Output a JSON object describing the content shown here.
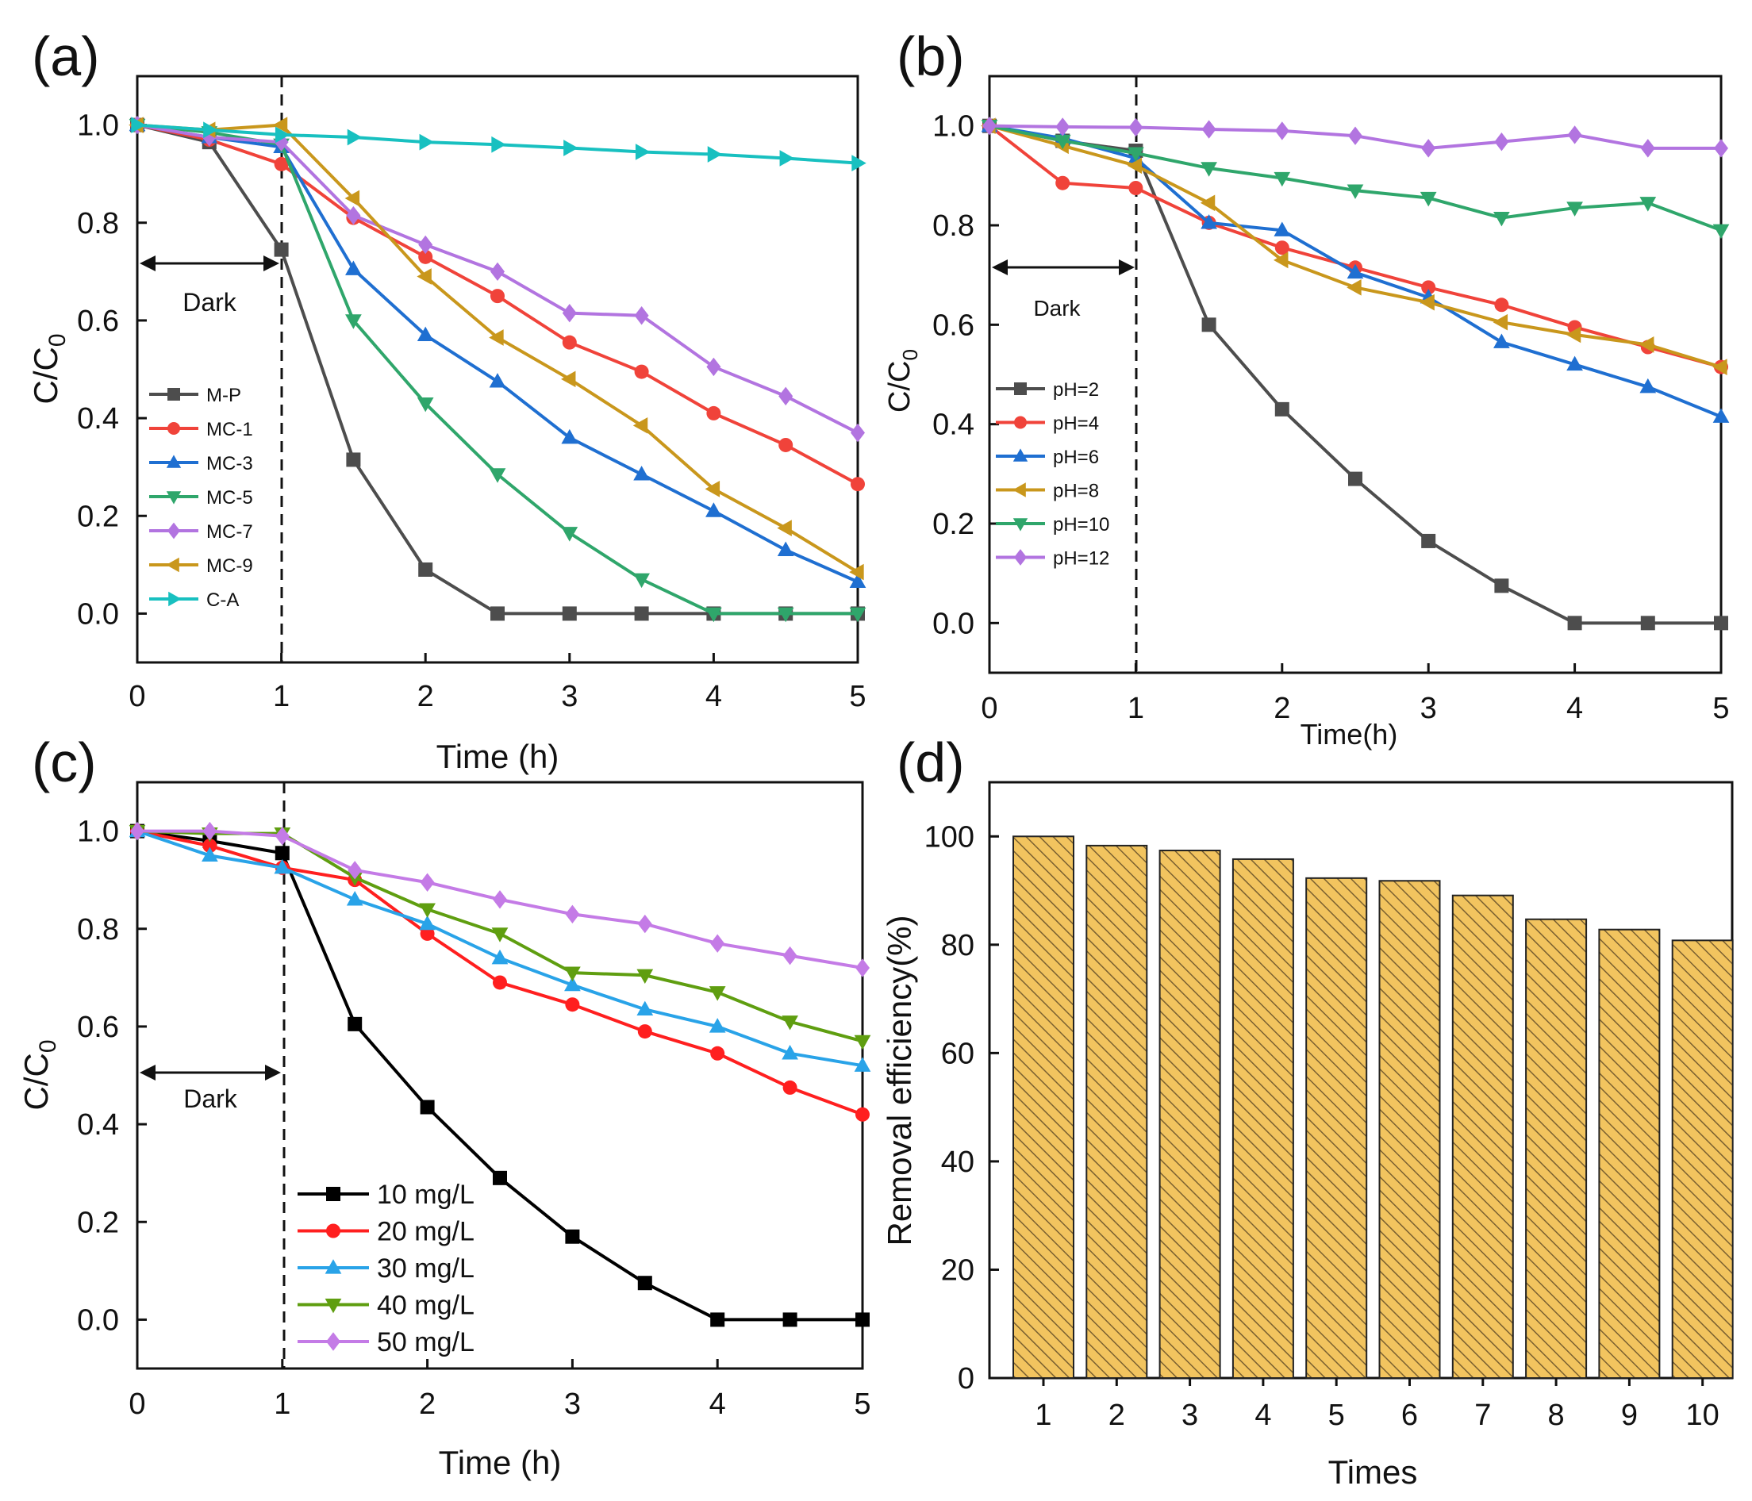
{
  "chart_data": [
    {
      "id": "a",
      "type": "line",
      "panel_label": "(a)",
      "xlabel": "Time (h)",
      "ylabel": "C/C",
      "ylabel_sub": "0",
      "xlim": [
        0,
        5
      ],
      "ylim": [
        -0.1,
        1.1
      ],
      "xticks": [
        "0",
        "1",
        "2",
        "3",
        "4",
        "5"
      ],
      "yticks": [
        "0.0",
        "0.2",
        "0.4",
        "0.6",
        "0.8",
        "1.0"
      ],
      "dark_label": "Dark",
      "dark_line_x": 1,
      "legend_position": "left",
      "x": [
        0,
        0.5,
        1,
        1.5,
        2,
        2.5,
        3,
        3.5,
        4,
        4.5,
        5
      ],
      "series": [
        {
          "name": "M-P",
          "color": "#4d4d4d",
          "marker": "square",
          "values": [
            1.0,
            0.965,
            0.745,
            0.315,
            0.09,
            0.0,
            0.0,
            0.0,
            0.0,
            0.0,
            0.0
          ]
        },
        {
          "name": "MC-1",
          "color": "#f0433a",
          "marker": "circle",
          "values": [
            1.0,
            0.97,
            0.92,
            0.81,
            0.73,
            0.65,
            0.555,
            0.495,
            0.41,
            0.345,
            0.265
          ]
        },
        {
          "name": "MC-3",
          "color": "#1f6fd1",
          "marker": "triangle-up",
          "values": [
            1.0,
            0.975,
            0.955,
            0.705,
            0.57,
            0.475,
            0.36,
            0.285,
            0.21,
            0.13,
            0.065
          ]
        },
        {
          "name": "MC-5",
          "color": "#2fa66b",
          "marker": "triangle-down",
          "values": [
            1.0,
            0.985,
            0.96,
            0.6,
            0.43,
            0.285,
            0.165,
            0.07,
            0.0,
            0.0,
            0.0
          ]
        },
        {
          "name": "MC-7",
          "color": "#b274e0",
          "marker": "diamond",
          "values": [
            1.0,
            0.975,
            0.965,
            0.815,
            0.755,
            0.7,
            0.615,
            0.61,
            0.505,
            0.445,
            0.37
          ]
        },
        {
          "name": "MC-9",
          "color": "#c9971c",
          "marker": "triangle-left",
          "values": [
            1.0,
            0.99,
            1.0,
            0.85,
            0.69,
            0.565,
            0.48,
            0.385,
            0.255,
            0.175,
            0.085
          ]
        },
        {
          "name": "C-A",
          "color": "#18c0c0",
          "marker": "triangle-right",
          "values": [
            1.0,
            0.99,
            0.98,
            0.975,
            0.965,
            0.96,
            0.953,
            0.945,
            0.94,
            0.932,
            0.922
          ]
        }
      ]
    },
    {
      "id": "b",
      "type": "line",
      "panel_label": "(b)",
      "xlabel": "Time(h)",
      "ylabel": "C/C",
      "ylabel_sub": "0",
      "xlim": [
        0,
        5
      ],
      "ylim": [
        -0.1,
        1.1
      ],
      "xticks": [
        "0",
        "1",
        "2",
        "3",
        "4",
        "5"
      ],
      "yticks": [
        "0.0",
        "0.2",
        "0.4",
        "0.6",
        "0.8",
        "1.0"
      ],
      "dark_label": "Dark",
      "dark_line_x": 1,
      "legend_position": "left",
      "x": [
        0,
        0.5,
        1,
        1.5,
        2,
        2.5,
        3,
        3.5,
        4,
        4.5,
        5
      ],
      "series": [
        {
          "name": "pH=2",
          "color": "#4d4d4d",
          "marker": "square",
          "values": [
            1.0,
            0.97,
            0.95,
            0.6,
            0.43,
            0.29,
            0.165,
            0.075,
            0.0,
            0.0,
            0.0
          ]
        },
        {
          "name": "pH=4",
          "color": "#f0433a",
          "marker": "circle",
          "values": [
            1.0,
            0.885,
            0.875,
            0.805,
            0.755,
            0.715,
            0.675,
            0.64,
            0.595,
            0.555,
            0.515
          ]
        },
        {
          "name": "pH=6",
          "color": "#1f6fd1",
          "marker": "triangle-up",
          "values": [
            1.0,
            0.975,
            0.935,
            0.805,
            0.79,
            0.705,
            0.655,
            0.565,
            0.52,
            0.475,
            0.415
          ]
        },
        {
          "name": "pH=8",
          "color": "#c9971c",
          "marker": "triangle-left",
          "values": [
            1.0,
            0.96,
            0.92,
            0.845,
            0.73,
            0.675,
            0.645,
            0.605,
            0.58,
            0.56,
            0.515
          ]
        },
        {
          "name": "pH=10",
          "color": "#2fa66b",
          "marker": "triangle-down",
          "values": [
            1.0,
            0.97,
            0.945,
            0.915,
            0.895,
            0.87,
            0.855,
            0.815,
            0.835,
            0.845,
            0.79
          ]
        },
        {
          "name": "pH=12",
          "color": "#b274e0",
          "marker": "diamond",
          "values": [
            1.0,
            0.998,
            0.997,
            0.993,
            0.99,
            0.98,
            0.955,
            0.968,
            0.982,
            0.955,
            0.955
          ]
        }
      ]
    },
    {
      "id": "c",
      "type": "line",
      "panel_label": "(c)",
      "xlabel": "Time (h)",
      "ylabel": "C/C",
      "ylabel_sub": "0",
      "xlim": [
        0,
        5
      ],
      "ylim": [
        -0.1,
        1.1
      ],
      "xticks": [
        "0",
        "1",
        "2",
        "3",
        "4",
        "5"
      ],
      "yticks": [
        "0.0",
        "0.2",
        "0.4",
        "0.6",
        "0.8",
        "1.0"
      ],
      "dark_label": "Dark",
      "dark_line_x": 1,
      "legend_position": "bottom-center",
      "x": [
        0,
        0.5,
        1,
        1.5,
        2,
        2.5,
        3,
        3.5,
        4,
        4.5,
        5
      ],
      "series": [
        {
          "name": "10 mg/L",
          "color": "#000000",
          "marker": "square",
          "values": [
            1.0,
            0.98,
            0.955,
            0.605,
            0.435,
            0.29,
            0.17,
            0.075,
            0.0,
            0.0,
            0.0
          ]
        },
        {
          "name": "20 mg/L",
          "color": "#ff1f1f",
          "marker": "circle",
          "values": [
            1.0,
            0.97,
            0.925,
            0.9,
            0.79,
            0.69,
            0.645,
            0.59,
            0.545,
            0.475,
            0.42
          ]
        },
        {
          "name": "30 mg/L",
          "color": "#29a3e8",
          "marker": "triangle-up",
          "values": [
            1.0,
            0.95,
            0.925,
            0.86,
            0.81,
            0.74,
            0.685,
            0.635,
            0.6,
            0.545,
            0.52
          ]
        },
        {
          "name": "40 mg/L",
          "color": "#5f9e10",
          "marker": "triangle-down",
          "values": [
            1.0,
            0.995,
            0.995,
            0.905,
            0.84,
            0.79,
            0.71,
            0.705,
            0.67,
            0.61,
            0.57
          ]
        },
        {
          "name": "50 mg/L",
          "color": "#c47be6",
          "marker": "diamond",
          "values": [
            1.0,
            1.0,
            0.99,
            0.92,
            0.895,
            0.86,
            0.83,
            0.81,
            0.77,
            0.745,
            0.72
          ]
        }
      ]
    },
    {
      "id": "d",
      "type": "bar",
      "panel_label": "(d)",
      "xlabel": "Times",
      "ylabel": "Removal efficiency(%)",
      "ylim": [
        0,
        110
      ],
      "yticks": [
        "0",
        "20",
        "40",
        "60",
        "80",
        "100"
      ],
      "categories": [
        "1",
        "2",
        "3",
        "4",
        "5",
        "6",
        "7",
        "8",
        "9",
        "10"
      ],
      "values": [
        100,
        98.3,
        97.4,
        95.8,
        92.3,
        91.8,
        89.1,
        84.7,
        82.8,
        80.8
      ],
      "bar_color": "#f2c45f",
      "hatch_color": "#7a6030"
    }
  ]
}
